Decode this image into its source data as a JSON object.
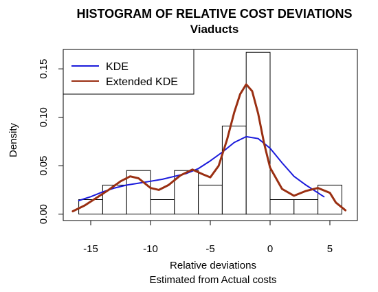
{
  "chart_data": {
    "type": "bar",
    "title": "HISTOGRAM OF RELATIVE COST DEVIATIONS",
    "subtitle": "Viaducts",
    "xlabel": "Relative deviations",
    "xlabel2": "Estimated from Actual costs",
    "ylabel": "Density",
    "xlim": [
      -17.3,
      7.3
    ],
    "ylim": [
      -0.0066,
      0.17
    ],
    "x_ticks": [
      -15,
      -10,
      -5,
      0,
      5
    ],
    "y_ticks": [
      0.0,
      0.05,
      0.1,
      0.15
    ],
    "x_tick_labels": [
      "-15",
      "-10",
      "-5",
      "0",
      "5"
    ],
    "y_tick_labels": [
      "0.00",
      "0.05",
      "0.10",
      "0.15"
    ],
    "bins": [
      {
        "x0": -16,
        "x1": -14,
        "density": 0.015
      },
      {
        "x0": -14,
        "x1": -12,
        "density": 0.03
      },
      {
        "x0": -12,
        "x1": -10,
        "density": 0.045
      },
      {
        "x0": -10,
        "x1": -8,
        "density": 0.015
      },
      {
        "x0": -8,
        "x1": -6,
        "density": 0.045
      },
      {
        "x0": -6,
        "x1": -4,
        "density": 0.03
      },
      {
        "x0": -4,
        "x1": -2,
        "density": 0.091
      },
      {
        "x0": -2,
        "x1": 0,
        "density": 0.167
      },
      {
        "x0": 0,
        "x1": 2,
        "density": 0.015
      },
      {
        "x0": 2,
        "x1": 4,
        "density": 0.015
      },
      {
        "x0": 4,
        "x1": 6,
        "density": 0.03
      }
    ],
    "series": [
      {
        "name": "KDE",
        "color": "#1a1adb",
        "x": [
          -16,
          -15,
          -14,
          -13,
          -12,
          -11,
          -10,
          -9,
          -8,
          -7,
          -6,
          -5,
          -4,
          -3,
          -2,
          -1,
          0,
          1,
          2,
          3,
          4,
          4.5
        ],
        "y": [
          0.014,
          0.018,
          0.023,
          0.027,
          0.03,
          0.032,
          0.034,
          0.036,
          0.039,
          0.042,
          0.047,
          0.055,
          0.064,
          0.074,
          0.08,
          0.078,
          0.068,
          0.053,
          0.039,
          0.03,
          0.022,
          0.018
        ]
      },
      {
        "name": "Extended KDE",
        "color": "#9a2f12",
        "x": [
          -16.5,
          -15.5,
          -14.5,
          -13.5,
          -12.5,
          -11.7,
          -11,
          -10,
          -9.3,
          -8.5,
          -7.5,
          -6.5,
          -5.6,
          -5,
          -4.3,
          -3.6,
          -3,
          -2.5,
          -2,
          -1.5,
          -1,
          -0.5,
          0,
          1,
          2,
          3,
          4,
          5,
          5.5,
          6.3
        ],
        "y": [
          0.003,
          0.009,
          0.017,
          0.025,
          0.034,
          0.039,
          0.037,
          0.027,
          0.025,
          0.03,
          0.04,
          0.046,
          0.041,
          0.038,
          0.05,
          0.077,
          0.105,
          0.124,
          0.134,
          0.127,
          0.104,
          0.073,
          0.048,
          0.026,
          0.019,
          0.024,
          0.027,
          0.022,
          0.012,
          0.004
        ]
      }
    ],
    "legend": {
      "position": "top-left"
    }
  }
}
